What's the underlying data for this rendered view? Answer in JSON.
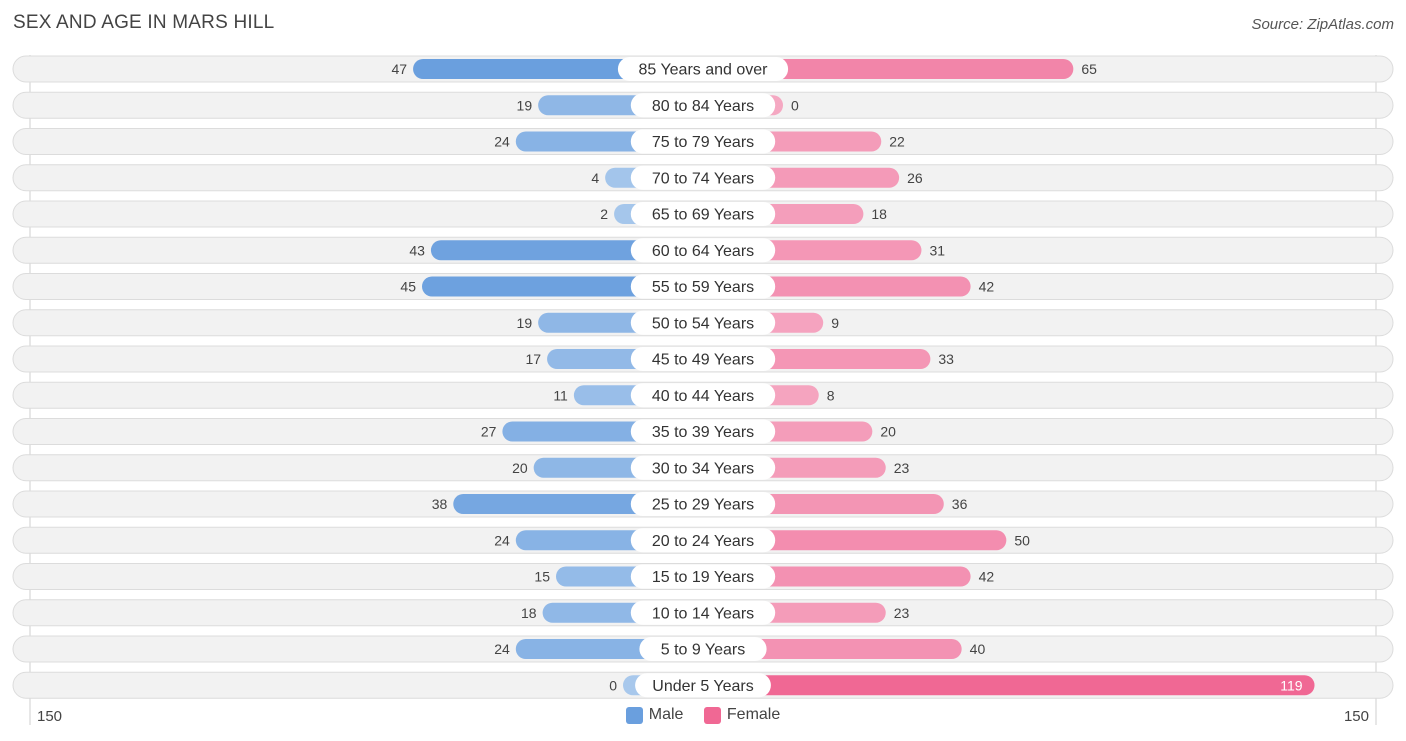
{
  "title": "SEX AND AGE IN MARS HILL",
  "source": "Source: ZipAtlas.com",
  "legend": {
    "male_label": "Male",
    "female_label": "Female"
  },
  "axis": {
    "left_label": "150",
    "right_label": "150"
  },
  "colors": {
    "male_dark": "#6a9fde",
    "male_light": "#a8c8ec",
    "female_dark": "#f06894",
    "female_light": "#f5a8c2"
  },
  "chart_data": {
    "type": "bar",
    "orientation": "horizontal-diverging",
    "title": "SEX AND AGE IN MARS HILL",
    "xlim": [
      -150,
      150
    ],
    "categories": [
      "85 Years and over",
      "80 to 84 Years",
      "75 to 79 Years",
      "70 to 74 Years",
      "65 to 69 Years",
      "60 to 64 Years",
      "55 to 59 Years",
      "50 to 54 Years",
      "45 to 49 Years",
      "40 to 44 Years",
      "35 to 39 Years",
      "30 to 34 Years",
      "25 to 29 Years",
      "20 to 24 Years",
      "15 to 19 Years",
      "10 to 14 Years",
      "5 to 9 Years",
      "Under 5 Years"
    ],
    "series": [
      {
        "name": "Male",
        "values": [
          47,
          19,
          24,
          4,
          2,
          43,
          45,
          19,
          17,
          11,
          27,
          20,
          38,
          24,
          15,
          18,
          24,
          0
        ]
      },
      {
        "name": "Female",
        "values": [
          65,
          0,
          22,
          26,
          18,
          31,
          42,
          9,
          33,
          8,
          20,
          23,
          36,
          50,
          42,
          23,
          40,
          119
        ]
      }
    ],
    "legend_position": "bottom-center"
  }
}
